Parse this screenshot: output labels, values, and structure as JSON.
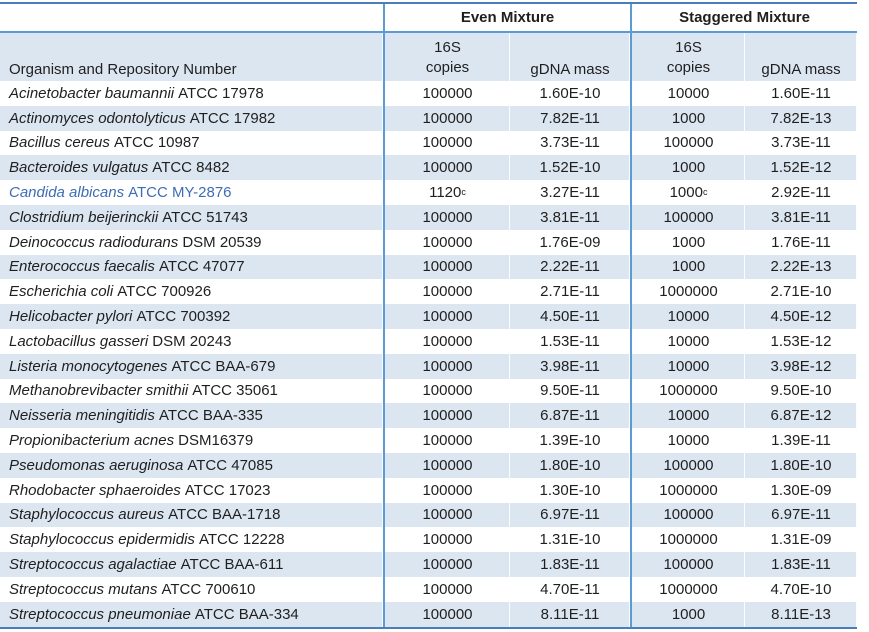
{
  "table": {
    "group_headers": {
      "even": "Even Mixture",
      "staggered": "Staggered Mixture"
    },
    "column_headers": {
      "organism": "Organism and Repository Number",
      "copies_line1": "16S",
      "copies_line2": "copies",
      "gdna_mass": "gDNA mass"
    },
    "colors": {
      "row_shade": "#DCE6F1",
      "divider_blue": "#5B9BD5",
      "frame_blue": "#4A7DBA",
      "highlight_text": "#3E6DB5",
      "body_text": "#1F1F1F"
    },
    "rows": [
      {
        "name_italic": "Acinetobacter baumannii",
        "name_rest": "ATCC 17978",
        "even_copies": "100000",
        "even_gdna_mass": "1.60E-10",
        "staggered_copies": "10000",
        "staggered_gdna_mass": "1.60E-11"
      },
      {
        "name_italic": "Actinomyces odontolyticus",
        "name_rest": "ATCC 17982",
        "even_copies": "100000",
        "even_gdna_mass": "7.82E-11",
        "staggered_copies": "1000",
        "staggered_gdna_mass": "7.82E-13"
      },
      {
        "name_italic": "Bacillus cereus",
        "name_rest": "ATCC 10987",
        "even_copies": "100000",
        "even_gdna_mass": "3.73E-11",
        "staggered_copies": "100000",
        "staggered_gdna_mass": "3.73E-11"
      },
      {
        "name_italic": "Bacteroides vulgatus",
        "name_rest": "ATCC 8482",
        "even_copies": "100000",
        "even_gdna_mass": "1.52E-10",
        "staggered_copies": "1000",
        "staggered_gdna_mass": "1.52E-12"
      },
      {
        "name_italic": "Candida albicans",
        "name_rest": "ATCC MY-2876",
        "even_copies": "1120",
        "even_copies_sup": "c",
        "even_gdna_mass": "3.27E-11",
        "staggered_copies": "1000",
        "staggered_copies_sup": "c",
        "staggered_gdna_mass": "2.92E-11",
        "highlight": true
      },
      {
        "name_italic": "Clostridium beijerinckii",
        "name_rest": "ATCC 51743",
        "even_copies": "100000",
        "even_gdna_mass": "3.81E-11",
        "staggered_copies": "100000",
        "staggered_gdna_mass": "3.81E-11"
      },
      {
        "name_italic": "Deinococcus radiodurans",
        "name_rest": "DSM 20539",
        "even_copies": "100000",
        "even_gdna_mass": "1.76E-09",
        "staggered_copies": "1000",
        "staggered_gdna_mass": "1.76E-11"
      },
      {
        "name_italic": "Enterococcus faecalis",
        "name_rest": "ATCC 47077",
        "even_copies": "100000",
        "even_gdna_mass": "2.22E-11",
        "staggered_copies": "1000",
        "staggered_gdna_mass": "2.22E-13"
      },
      {
        "name_italic": "Escherichia coli",
        "name_rest": "ATCC 700926",
        "even_copies": "100000",
        "even_gdna_mass": "2.71E-11",
        "staggered_copies": "1000000",
        "staggered_gdna_mass": "2.71E-10"
      },
      {
        "name_italic": "Helicobacter pylori",
        "name_rest": "ATCC 700392",
        "even_copies": "100000",
        "even_gdna_mass": "4.50E-11",
        "staggered_copies": "10000",
        "staggered_gdna_mass": "4.50E-12"
      },
      {
        "name_italic": "Lactobacillus gasseri",
        "name_rest": "DSM 20243",
        "even_copies": "100000",
        "even_gdna_mass": "1.53E-11",
        "staggered_copies": "10000",
        "staggered_gdna_mass": "1.53E-12"
      },
      {
        "name_italic": "Listeria monocytogenes",
        "name_rest": "ATCC BAA-679",
        "even_copies": "100000",
        "even_gdna_mass": "3.98E-11",
        "staggered_copies": "10000",
        "staggered_gdna_mass": "3.98E-12"
      },
      {
        "name_italic": "Methanobrevibacter smithii",
        "name_rest": "ATCC 35061",
        "even_copies": "100000",
        "even_gdna_mass": "9.50E-11",
        "staggered_copies": "1000000",
        "staggered_gdna_mass": "9.50E-10"
      },
      {
        "name_italic": "Neisseria meningitidis",
        "name_rest": "ATCC BAA-335",
        "even_copies": "100000",
        "even_gdna_mass": "6.87E-11",
        "staggered_copies": "10000",
        "staggered_gdna_mass": "6.87E-12"
      },
      {
        "name_italic": "Propionibacterium acnes",
        "name_rest": "DSM16379",
        "even_copies": "100000",
        "even_gdna_mass": "1.39E-10",
        "staggered_copies": "10000",
        "staggered_gdna_mass": "1.39E-11"
      },
      {
        "name_italic": "Pseudomonas aeruginosa",
        "name_rest": "ATCC 47085",
        "even_copies": "100000",
        "even_gdna_mass": "1.80E-10",
        "staggered_copies": "100000",
        "staggered_gdna_mass": "1.80E-10"
      },
      {
        "name_italic": "Rhodobacter sphaeroides",
        "name_rest": "ATCC 17023",
        "even_copies": "100000",
        "even_gdna_mass": "1.30E-10",
        "staggered_copies": "1000000",
        "staggered_gdna_mass": "1.30E-09"
      },
      {
        "name_italic": "Staphylococcus aureus",
        "name_rest": "ATCC BAA-1718",
        "even_copies": "100000",
        "even_gdna_mass": "6.97E-11",
        "staggered_copies": "100000",
        "staggered_gdna_mass": "6.97E-11"
      },
      {
        "name_italic": "Staphylococcus epidermidis",
        "name_rest": "ATCC 12228",
        "even_copies": "100000",
        "even_gdna_mass": "1.31E-10",
        "staggered_copies": "1000000",
        "staggered_gdna_mass": "1.31E-09"
      },
      {
        "name_italic": "Streptococcus agalactiae",
        "name_rest": "ATCC BAA-611",
        "even_copies": "100000",
        "even_gdna_mass": "1.83E-11",
        "staggered_copies": "100000",
        "staggered_gdna_mass": "1.83E-11"
      },
      {
        "name_italic": "Streptococcus mutans",
        "name_rest": "ATCC 700610",
        "even_copies": "100000",
        "even_gdna_mass": "4.70E-11",
        "staggered_copies": "1000000",
        "staggered_gdna_mass": "4.70E-10"
      },
      {
        "name_italic": "Streptococcus pneumoniae",
        "name_rest": "ATCC BAA-334",
        "even_copies": "100000",
        "even_gdna_mass": "8.11E-11",
        "staggered_copies": "1000",
        "staggered_gdna_mass": "8.11E-13"
      }
    ]
  }
}
